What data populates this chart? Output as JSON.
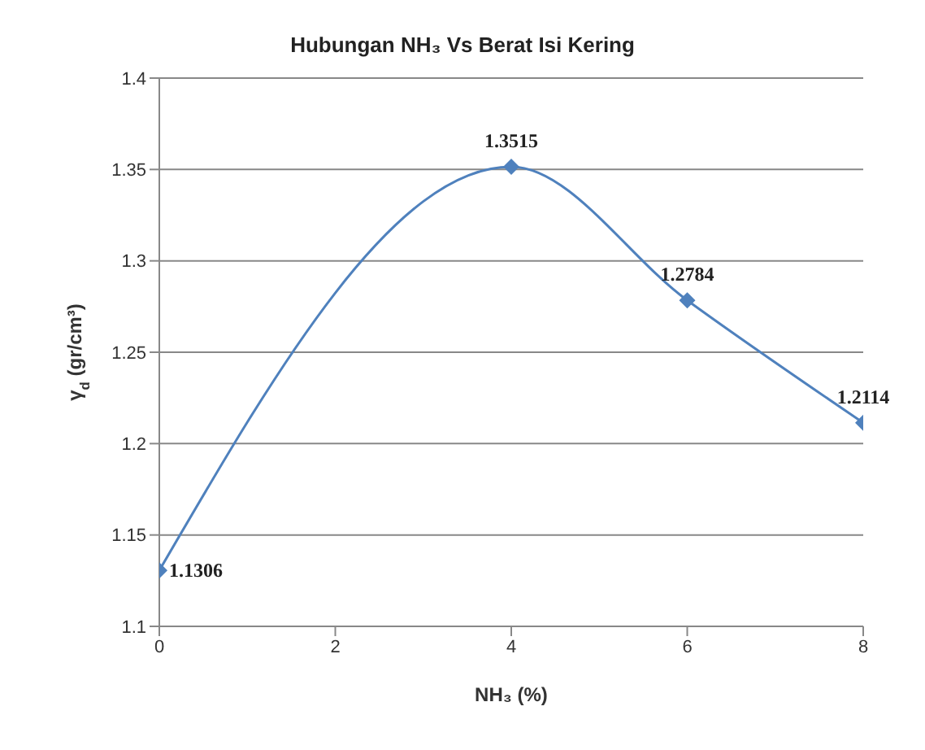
{
  "chart_data": {
    "type": "line",
    "title": "Hubungan NH₃ Vs Berat Isi Kering",
    "xlabel": "NH₃ (%)",
    "ylabel": "γ$_{d}$ (gr/cm³)",
    "x": [
      0,
      4,
      6,
      8
    ],
    "series": [
      {
        "color": "#4f81bd",
        "values": [
          1.1306,
          1.3515,
          1.2784,
          1.2114
        ]
      }
    ],
    "xlim": [
      0,
      8
    ],
    "xticks": [
      0,
      2,
      4,
      6,
      8
    ],
    "ylim": [
      1.1,
      1.4
    ],
    "yticks": [
      1.1,
      1.15,
      1.2,
      1.25,
      1.3,
      1.35,
      1.4
    ],
    "grid": "y",
    "marker": "diamond",
    "data_labels": true,
    "legend": false
  }
}
